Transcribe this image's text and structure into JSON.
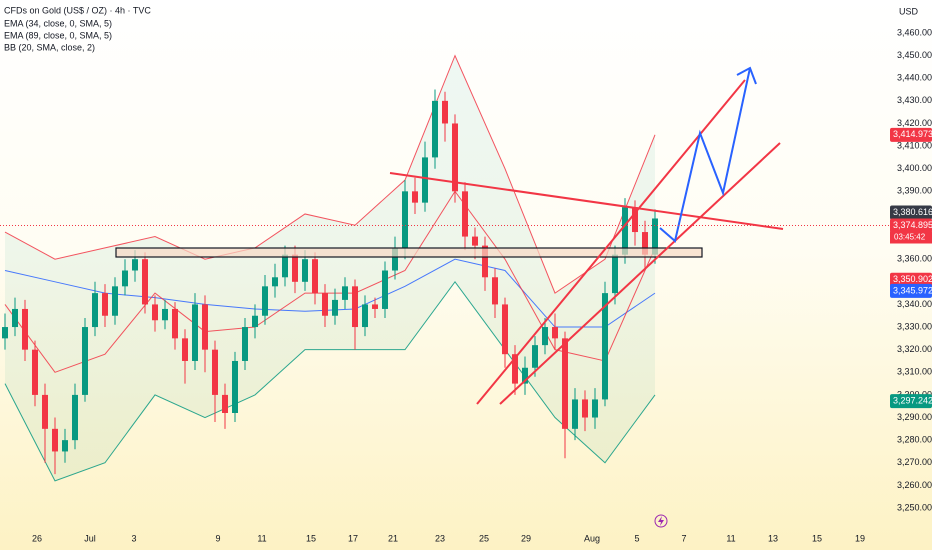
{
  "chart_data": {
    "type": "candlestick",
    "title": "CFDs on Gold (US$ / OZ) · 4h · TVC",
    "indicator_labels": [
      "EMA (34, close, 0, SMA, 5)",
      "EMA (89, close, 0, SMA, 5)",
      "BB (20, SMA, close, 2)"
    ],
    "currency": "USD",
    "up_color": "#089981",
    "down_color": "#f23645",
    "open": [
      3325,
      3330,
      3338,
      3320,
      3300,
      3285,
      3275,
      3280,
      3300,
      3330,
      3345,
      3335,
      3348,
      3355,
      3360,
      3340,
      3333,
      3338,
      3325,
      3315,
      3340,
      3320,
      3300,
      3292,
      3315,
      3330,
      3335,
      3348,
      3352,
      3362,
      3350,
      3360,
      3345,
      3335,
      3342,
      3348,
      3330,
      3340,
      3338,
      3355,
      3365,
      3390,
      3385,
      3405,
      3430,
      3420,
      3390,
      3370,
      3366,
      3352,
      3340,
      3318,
      3305,
      3312,
      3322,
      3330,
      3325,
      3285,
      3298,
      3290,
      3298,
      3345,
      3362,
      3383,
      3372,
      3362
    ],
    "high": [
      3336,
      3343,
      3342,
      3324,
      3305,
      3290,
      3285,
      3305,
      3334,
      3350,
      3349,
      3352,
      3360,
      3364,
      3363,
      3344,
      3342,
      3341,
      3329,
      3345,
      3344,
      3324,
      3305,
      3319,
      3334,
      3340,
      3353,
      3358,
      3366,
      3366,
      3364,
      3363,
      3349,
      3347,
      3352,
      3351,
      3344,
      3343,
      3359,
      3370,
      3395,
      3396,
      3412,
      3435,
      3434,
      3424,
      3394,
      3374,
      3370,
      3356,
      3343,
      3322,
      3317,
      3326,
      3334,
      3336,
      3328,
      3303,
      3302,
      3303,
      3350,
      3366,
      3387,
      3386,
      3377,
      3382
    ],
    "low": [
      3320,
      3326,
      3315,
      3295,
      3270,
      3265,
      3270,
      3276,
      3297,
      3326,
      3330,
      3331,
      3344,
      3350,
      3336,
      3328,
      3329,
      3320,
      3305,
      3311,
      3310,
      3288,
      3285,
      3288,
      3311,
      3325,
      3331,
      3343,
      3348,
      3345,
      3346,
      3340,
      3330,
      3331,
      3338,
      3320,
      3326,
      3334,
      3334,
      3351,
      3360,
      3380,
      3381,
      3400,
      3412,
      3385,
      3364,
      3360,
      3346,
      3334,
      3312,
      3300,
      3300,
      3308,
      3318,
      3320,
      3272,
      3280,
      3284,
      3285,
      3295,
      3340,
      3358,
      3366,
      3356,
      3358
    ],
    "close": [
      3330,
      3338,
      3320,
      3300,
      3285,
      3275,
      3280,
      3300,
      3330,
      3345,
      3335,
      3348,
      3355,
      3360,
      3340,
      3333,
      3338,
      3325,
      3315,
      3340,
      3320,
      3300,
      3292,
      3315,
      3330,
      3335,
      3348,
      3352,
      3362,
      3350,
      3360,
      3345,
      3335,
      3342,
      3348,
      3330,
      3340,
      3338,
      3355,
      3365,
      3390,
      3385,
      3405,
      3430,
      3420,
      3390,
      3370,
      3366,
      3352,
      3340,
      3318,
      3305,
      3312,
      3322,
      3330,
      3325,
      3285,
      3298,
      3290,
      3298,
      3345,
      3362,
      3383,
      3372,
      3362,
      3378
    ],
    "overlays": [
      {
        "name": "EMA 89",
        "color": "#2962ff",
        "x": [
          0,
          5,
          10,
          15,
          20,
          25,
          30,
          35,
          40,
          45,
          50,
          55,
          60,
          65
        ],
        "values": [
          3355,
          3350,
          3345,
          3343,
          3340,
          3338,
          3337,
          3338,
          3348,
          3360,
          3355,
          3330,
          3330,
          3345
        ]
      },
      {
        "name": "BB basis",
        "color": "#f23645",
        "x": [
          0,
          5,
          10,
          15,
          20,
          25,
          30,
          35,
          40,
          45,
          50,
          55,
          60,
          65
        ],
        "values": [
          3340,
          3310,
          3318,
          3345,
          3328,
          3330,
          3345,
          3345,
          3355,
          3390,
          3360,
          3320,
          3315,
          3365
        ]
      },
      {
        "name": "BB upper",
        "color": "#f23645",
        "x": [
          0,
          5,
          10,
          15,
          20,
          25,
          30,
          35,
          40,
          45,
          50,
          55,
          60,
          65
        ],
        "values": [
          3372,
          3360,
          3365,
          3370,
          3360,
          3365,
          3380,
          3375,
          3395,
          3450,
          3400,
          3345,
          3360,
          3415
        ]
      },
      {
        "name": "BB lower",
        "color": "#089981",
        "x": [
          0,
          5,
          10,
          15,
          20,
          25,
          30,
          35,
          40,
          45,
          50,
          55,
          60,
          65
        ],
        "values": [
          3305,
          3262,
          3270,
          3300,
          3290,
          3300,
          3320,
          3320,
          3320,
          3350,
          3320,
          3290,
          3270,
          3300
        ]
      }
    ],
    "xlim": [
      -0.5,
      88.5
    ],
    "xticks": [
      {
        "value": 3.2,
        "label": "26"
      },
      {
        "value": 8.5,
        "label": "Jul"
      },
      {
        "value": 12.9,
        "label": "3"
      },
      {
        "value": 21.3,
        "label": "9"
      },
      {
        "value": 25.7,
        "label": "11"
      },
      {
        "value": 30.6,
        "label": "15"
      },
      {
        "value": 34.8,
        "label": "17"
      },
      {
        "value": 38.8,
        "label": "21"
      },
      {
        "value": 43.5,
        "label": "23"
      },
      {
        "value": 47.9,
        "label": "25"
      },
      {
        "value": 52.1,
        "label": "29"
      },
      {
        "value": 58.7,
        "label": "Aug"
      },
      {
        "value": 63.2,
        "label": "5"
      },
      {
        "value": 67.9,
        "label": "7"
      },
      {
        "value": 72.6,
        "label": "11"
      },
      {
        "value": 76.8,
        "label": "13"
      },
      {
        "value": 81.2,
        "label": "15"
      },
      {
        "value": 85.5,
        "label": "19"
      }
    ],
    "ylim": [
      3250,
      3460
    ],
    "yticks": [
      {
        "value": 3250,
        "label": "3,250.000"
      },
      {
        "value": 3260,
        "label": "3,260.000"
      },
      {
        "value": 3270,
        "label": "3,270.000"
      },
      {
        "value": 3280,
        "label": "3,280.000"
      },
      {
        "value": 3290,
        "label": "3,290.000"
      },
      {
        "value": 3300,
        "label": "3,300.000"
      },
      {
        "value": 3310,
        "label": "3,310.000"
      },
      {
        "value": 3320,
        "label": "3,320.000"
      },
      {
        "value": 3330,
        "label": "3,330.000"
      },
      {
        "value": 3340,
        "label": "3,340.000"
      },
      {
        "value": 3350,
        "label": "3,350.000"
      },
      {
        "value": 3360,
        "label": "3,360.000"
      },
      {
        "value": 3370,
        "label": "3,370.000"
      },
      {
        "value": 3380,
        "label": "3,380.000"
      },
      {
        "value": 3390,
        "label": "3,390.000"
      },
      {
        "value": 3400,
        "label": "3,400.000"
      },
      {
        "value": 3410,
        "label": "3,410.000"
      },
      {
        "value": 3420,
        "label": "3,420.000"
      },
      {
        "value": 3430,
        "label": "3,430.000"
      },
      {
        "value": 3440,
        "label": "3,440.000"
      },
      {
        "value": 3450,
        "label": "3,450.000"
      },
      {
        "value": 3460,
        "label": "3,460.000"
      }
    ],
    "grid": false,
    "current_price": {
      "value": 3374.895,
      "label": "3,374.895",
      "countdown": "03:45:42",
      "color": "#f23645"
    },
    "price_labels": [
      {
        "value": 3414.973,
        "label": "3,414.973",
        "color": "#f23645"
      },
      {
        "value": 3380.616,
        "label": "3,380.616",
        "color": "#363a45"
      },
      {
        "value": 3350.902,
        "label": "3,350.902",
        "color": "#f23645"
      },
      {
        "value": 3345.972,
        "label": "3,345.972",
        "color": "#2962ff"
      },
      {
        "value": 3297.242,
        "label": "3,297.242",
        "color": "#089981"
      }
    ]
  }
}
